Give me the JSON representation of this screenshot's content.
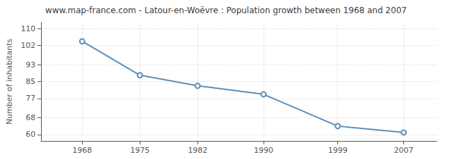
{
  "chart_data": {
    "type": "line",
    "title": "www.map-france.com - Latour-en-Woëvre : Population growth between 1968 and 2007",
    "ylabel": "Number of inhabitants",
    "x": [
      1968,
      1975,
      1982,
      1990,
      1999,
      2007
    ],
    "values": [
      104,
      88,
      83,
      79,
      64,
      61
    ],
    "color": "#5b8db8",
    "marker": "circle",
    "xlim": [
      1963,
      2011
    ],
    "xticks": [
      1968,
      1975,
      1982,
      1990,
      1999,
      2007
    ],
    "ylim": [
      57,
      113
    ],
    "yticks": [
      60,
      68,
      77,
      85,
      93,
      102,
      110
    ],
    "grid": true
  }
}
